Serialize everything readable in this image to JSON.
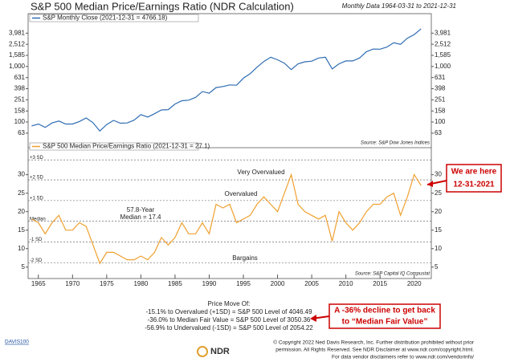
{
  "header": {
    "title": "S&P 500 Median Price/Earnings Ratio (NDR Calculation)",
    "subtitle": "Monthly Data 1964-03-31 to 2021-12-31"
  },
  "chart_data": [
    {
      "type": "line",
      "log_scale": true,
      "x": [
        1964,
        1965,
        1966,
        1967,
        1968,
        1969,
        1970,
        1971,
        1972,
        1973,
        1974,
        1975,
        1976,
        1977,
        1978,
        1979,
        1980,
        1981,
        1982,
        1983,
        1984,
        1985,
        1986,
        1987,
        1988,
        1989,
        1990,
        1991,
        1992,
        1993,
        1994,
        1995,
        1996,
        1997,
        1998,
        1999,
        2000,
        2001,
        2002,
        2003,
        2004,
        2005,
        2006,
        2007,
        2008,
        2009,
        2010,
        2011,
        2012,
        2013,
        2014,
        2015,
        2016,
        2017,
        2018,
        2019,
        2020,
        2021
      ],
      "series": [
        {
          "name": "S&P Monthly Close (2021-12-31 = 4766.18)",
          "color": "#2f6db3",
          "values": [
            85,
            92,
            80,
            96,
            104,
            92,
            92,
            102,
            118,
            97,
            69,
            90,
            107,
            95,
            96,
            108,
            136,
            123,
            141,
            165,
            167,
            211,
            242,
            247,
            278,
            353,
            330,
            417,
            436,
            466,
            459,
            616,
            741,
            970,
            1229,
            1469,
            1320,
            1148,
            880,
            1112,
            1212,
            1248,
            1418,
            1468,
            903,
            1115,
            1258,
            1258,
            1426,
            1848,
            2059,
            2044,
            2239,
            2674,
            2507,
            3231,
            3756,
            4766.18
          ]
        }
      ],
      "xlim": [
        1963.5,
        2022.5
      ],
      "ylim": [
        45,
        5800
      ],
      "yticks": [
        63,
        100,
        158,
        251,
        398,
        631,
        {
          "value": 1000,
          "label": "1,000"
        },
        {
          "value": 1585,
          "label": "1,585"
        },
        {
          "value": 2512,
          "label": "2,512"
        },
        {
          "value": 3981,
          "label": "3,981"
        }
      ],
      "source": "Source:  S&P Dow Jones Indices"
    },
    {
      "type": "line",
      "x": [
        1964,
        1965,
        1966,
        1967,
        1968,
        1969,
        1970,
        1971,
        1972,
        1973,
        1974,
        1975,
        1976,
        1977,
        1978,
        1979,
        1980,
        1981,
        1982,
        1983,
        1984,
        1985,
        1986,
        1987,
        1988,
        1989,
        1990,
        1991,
        1992,
        1993,
        1994,
        1995,
        1996,
        1997,
        1998,
        1999,
        2000,
        2001,
        2002,
        2003,
        2004,
        2005,
        2006,
        2007,
        2008,
        2009,
        2010,
        2011,
        2012,
        2013,
        2014,
        2015,
        2016,
        2017,
        2018,
        2019,
        2020,
        2021
      ],
      "series": [
        {
          "name": "S&P 500 Median Price/Earnings Ratio (2021-12-31 = 27.1)",
          "color": "#f0a030",
          "values": [
            18,
            17,
            14,
            17,
            19,
            15,
            15,
            17,
            16,
            11,
            6,
            9,
            9,
            8,
            7,
            7,
            8,
            7,
            9,
            13,
            11,
            13,
            17,
            14,
            14,
            17,
            14,
            22,
            21,
            22,
            17,
            18,
            19,
            22,
            24,
            22,
            20,
            25,
            30,
            22,
            20,
            19,
            18,
            19,
            12,
            20,
            17,
            15,
            17,
            20,
            22,
            22,
            24,
            25,
            19,
            24,
            30,
            27.1
          ]
        }
      ],
      "xlim": [
        1963.5,
        2022.5
      ],
      "xticks": [
        1965,
        1970,
        1975,
        1980,
        1985,
        1990,
        1995,
        2000,
        2005,
        2010,
        2015,
        2020
      ],
      "ylim": [
        3,
        36
      ],
      "yticks": [
        5,
        10,
        15,
        20,
        25,
        30
      ],
      "reference_lines": [
        {
          "value": 34,
          "label": "+3 SD"
        },
        {
          "value": 28.6,
          "label": "+2 SD"
        },
        {
          "value": 23,
          "label": "+1 SD"
        },
        {
          "value": 17.4,
          "label": "Median"
        },
        {
          "value": 11.8,
          "label": "-1 SD"
        },
        {
          "value": 6.2,
          "label": "-2 SD"
        }
      ],
      "annotations": [
        "Very Overvalued",
        "Overvalued",
        "57.8-Year",
        "Median = 17.4",
        "Bargains"
      ],
      "source": "Source:  S&P Capital IQ Compustat"
    }
  ],
  "callouts": {
    "here": [
      "We are here",
      "12-31-2021"
    ],
    "decline": [
      "A -36% decline to get back",
      "to “Median Fair Value”"
    ]
  },
  "price_move": {
    "title": "Price Move Of:",
    "lines": [
      "-15.1% to Overvalued (+1SD) = S&P 500 Level of 4046.49",
      "-36.0% to Median Fair Value = S&P 500 Level of 3050.36",
      "-56.9% to Undervalued (-1SD) = S&P 500 Level of 2054.22"
    ]
  },
  "footer": {
    "code": "DAVIS100",
    "logo": "NDR",
    "lines": [
      "© Copyright 2022 Ned Davis Research, Inc. Further distribution prohibited without prior",
      "permission. All Rights Reserved. See NDR Disclaimer at www.ndr.com/copyright.html.",
      "For data vendor disclaimers refer to www.ndr.com/vendorinfo/"
    ]
  }
}
